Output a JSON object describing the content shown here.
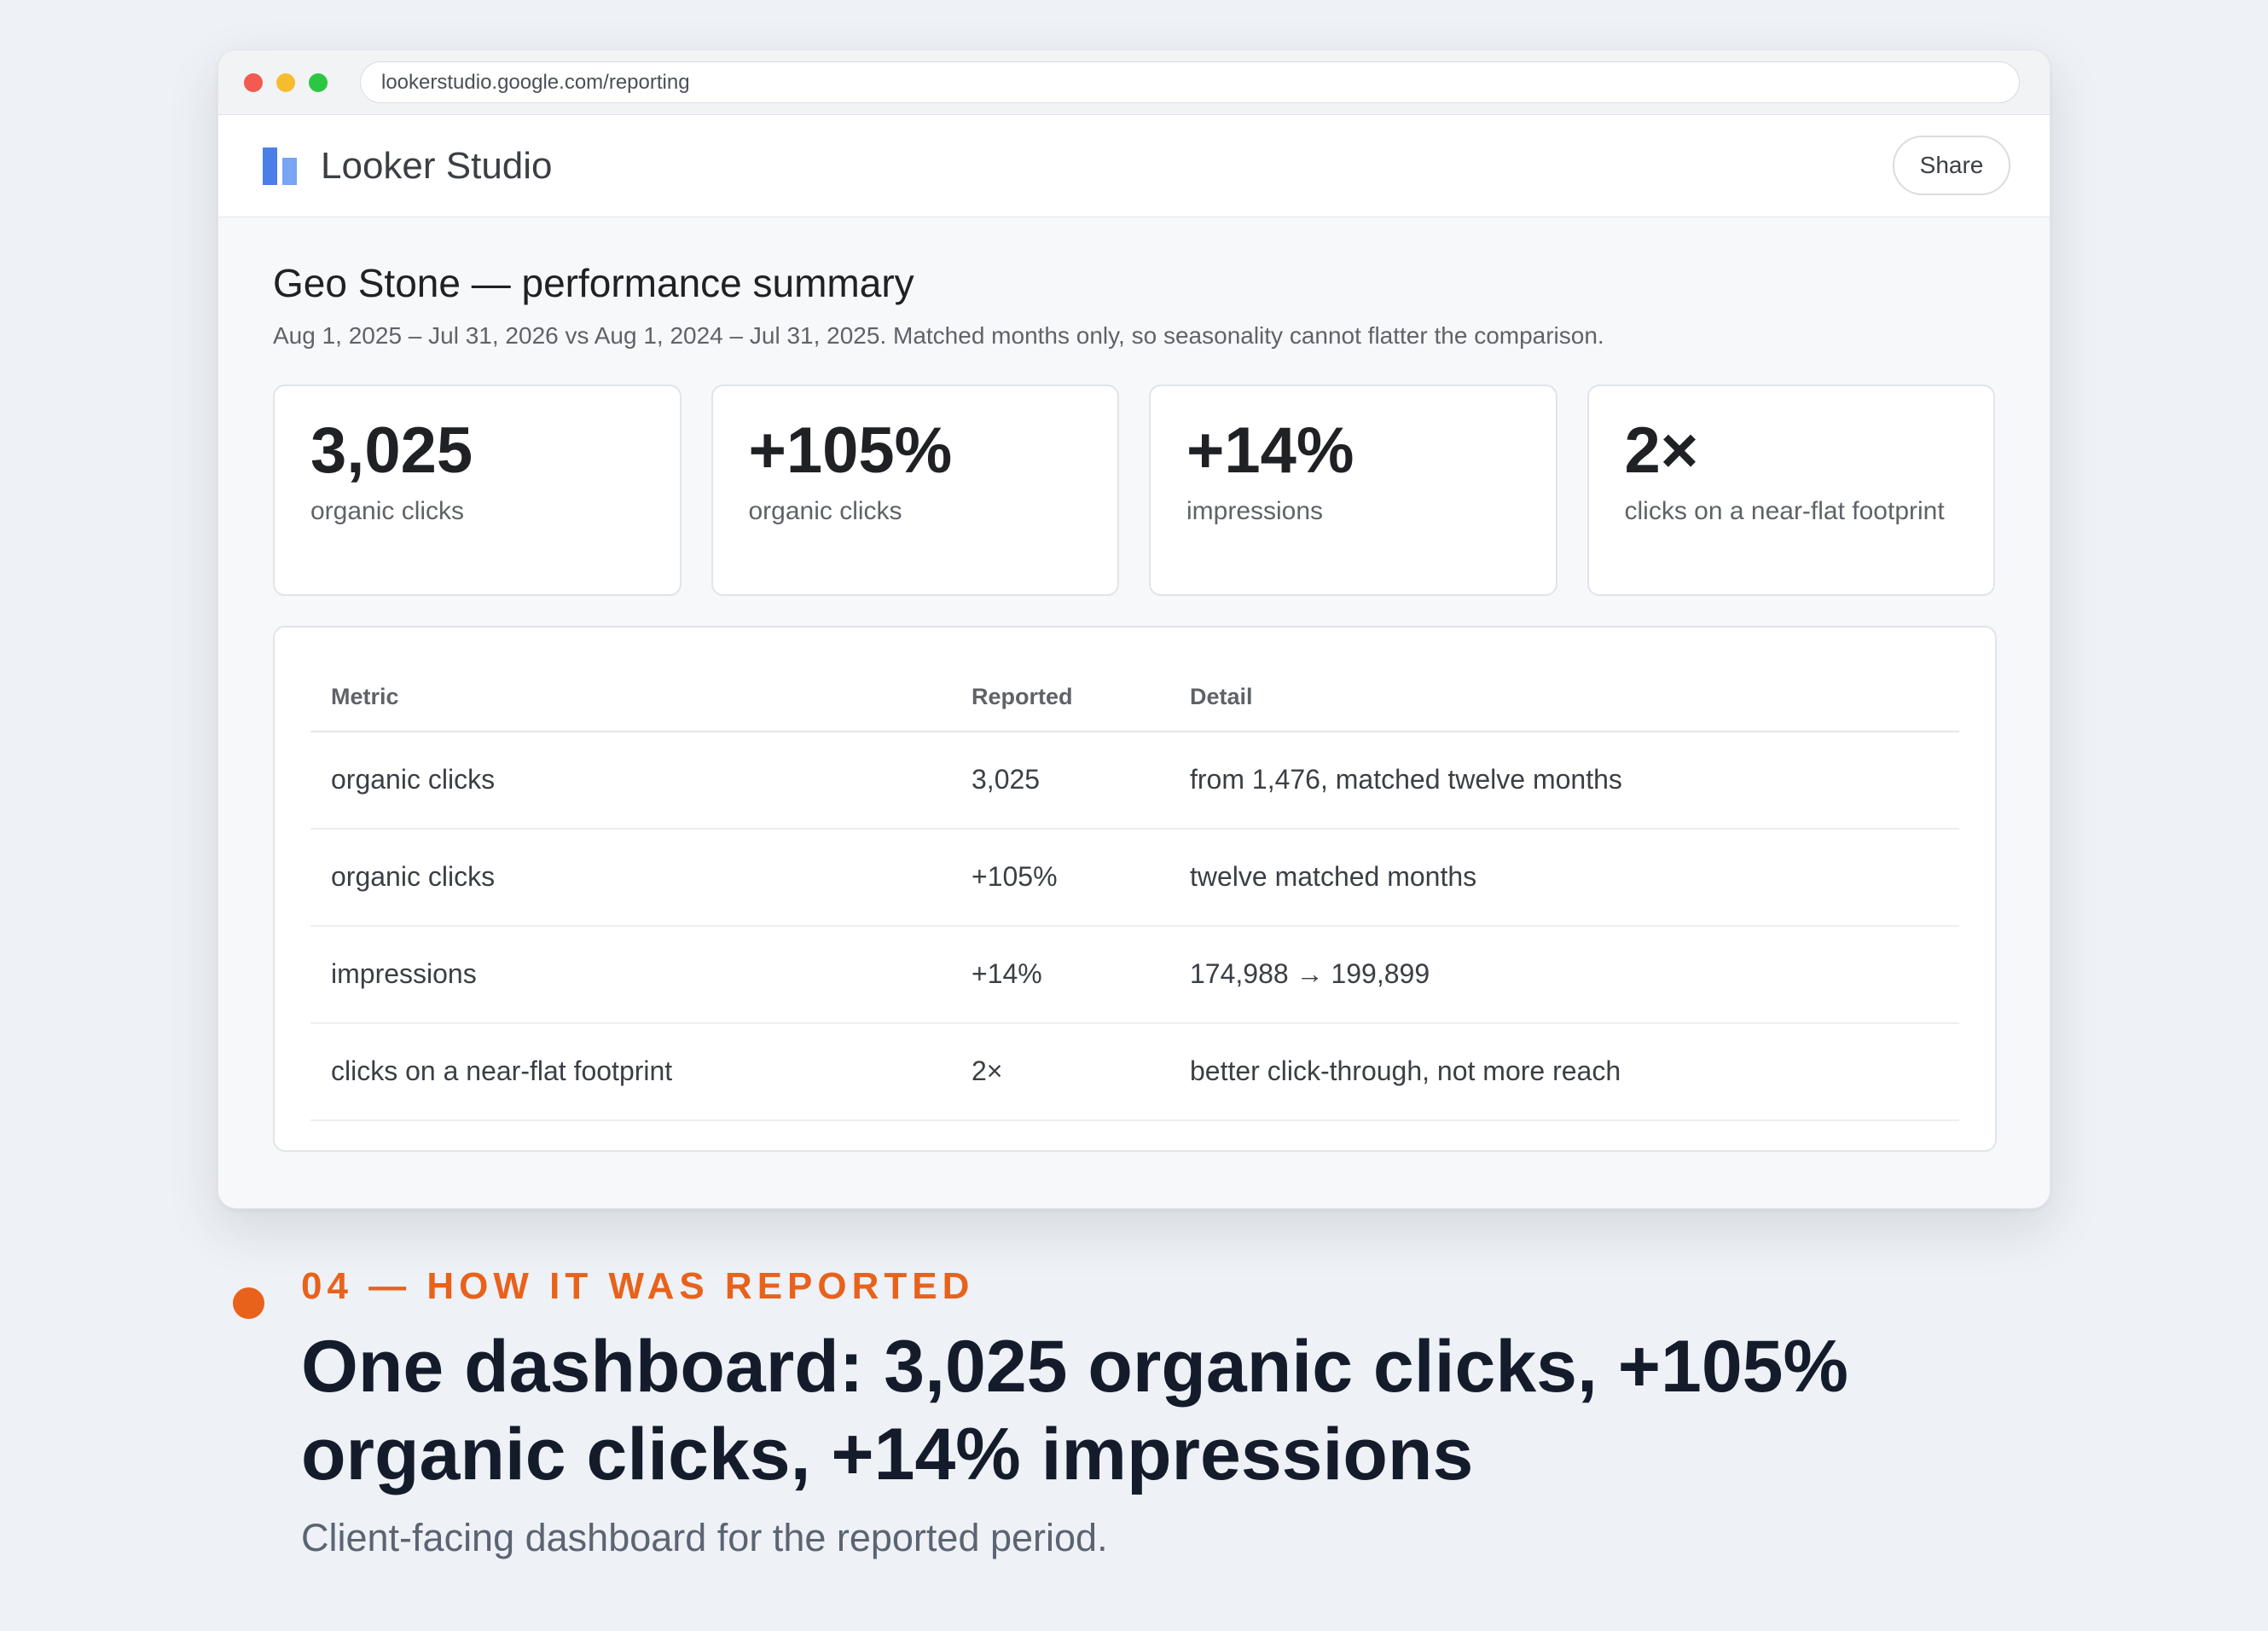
{
  "browser": {
    "url": "lookerstudio.google.com/reporting"
  },
  "app": {
    "name": "Looker Studio",
    "share_label": "Share"
  },
  "report": {
    "title": "Geo Stone — performance summary",
    "subtitle": "Aug 1, 2025 – Jul 31, 2026 vs Aug 1, 2024 – Jul 31, 2025. Matched months only, so seasonality cannot flatter the comparison."
  },
  "kpis": [
    {
      "value": "3,025",
      "label": "organic clicks"
    },
    {
      "value": "+105%",
      "label": "organic clicks"
    },
    {
      "value": "+14%",
      "label": "impressions"
    },
    {
      "value": "2×",
      "label": "clicks on a near-flat footprint"
    }
  ],
  "table": {
    "headers": [
      "Metric",
      "Reported",
      "Detail"
    ],
    "rows": [
      [
        "organic clicks",
        "3,025",
        "from 1,476, matched twelve months"
      ],
      [
        "organic clicks",
        "+105%",
        "twelve matched months"
      ],
      [
        "impressions",
        "+14%",
        "174,988 → 199,899"
      ],
      [
        "clicks on a near-flat footprint",
        "2×",
        "better click-through, not more reach"
      ]
    ]
  },
  "caption": {
    "eyebrow": "04 — HOW IT WAS REPORTED",
    "headline_line1": "One dashboard: 3,025 organic clicks, +105%",
    "headline_line2": "organic clicks, +14% impressions",
    "subtitle": "Client-facing dashboard for the reported period."
  },
  "colors": {
    "accent": "#e8621c",
    "headline": "#141c2c",
    "logo_primary": "#4a7fe8",
    "logo_secondary": "#78a5f4"
  }
}
